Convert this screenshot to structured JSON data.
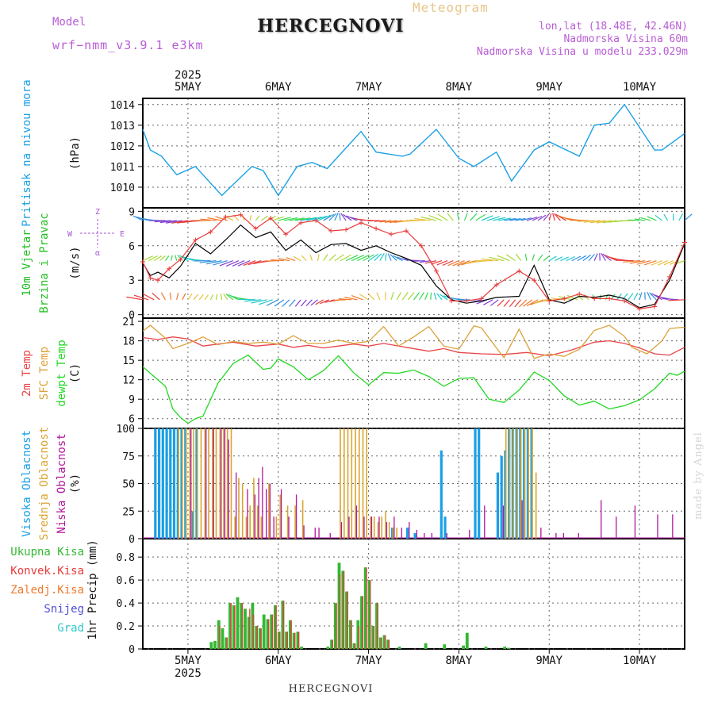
{
  "header": {
    "title": "HERCEGNOVI",
    "meteogram_label": "Meteogram",
    "model_label": "Model",
    "model_value": "wrf−nmm_v3.9.1  e3km",
    "location_coords": "lon,lat (18.48E, 42.46N)",
    "elevation": "Nadmorska Visina 60m",
    "model_elevation": "Nadmorska Visina u modelu 233.029m"
  },
  "footer": {
    "title": "HERCEGNOVI",
    "credit": "made by Angel"
  },
  "colors": {
    "pressure": "#1aa0e6",
    "wind_label": "#22c022",
    "temp2m": "#e8454a",
    "sfc": "#dca13a",
    "dewpt": "#22d822",
    "high_cloud": "#1aa0e6",
    "mid_cloud": "#d9a530",
    "low_cloud": "#b0179c",
    "total_precip": "#32b832",
    "conv_precip": "#e83a3a",
    "grid_precip": "#f07a2a",
    "snow": "#5050d8",
    "hail": "#30c8c8",
    "gust": "#e83a3a",
    "compass": "#a855d8"
  },
  "chart_data": [
    {
      "id": "pressure",
      "type": "line",
      "title_lines": [
        "Pritisak na nivou mora",
        "(hPa)"
      ],
      "x_range": [
        0,
        144
      ],
      "ylim": [
        1009,
        1014.3
      ],
      "yticks": [
        "1010",
        "1011",
        "1012",
        "1013",
        "1014"
      ],
      "x": [
        0,
        2,
        5,
        9,
        14,
        21,
        29,
        32,
        36,
        41,
        45,
        49,
        58,
        62,
        69,
        71,
        78,
        84,
        88,
        94,
        98,
        104,
        108,
        116,
        120,
        124,
        128,
        136,
        138,
        144
      ],
      "y": [
        1012.8,
        1011.8,
        1011.5,
        1010.6,
        1011.0,
        1009.6,
        1011.0,
        1010.8,
        1009.6,
        1011.0,
        1011.2,
        1010.9,
        1012.7,
        1011.7,
        1011.5,
        1011.6,
        1012.8,
        1011.4,
        1011.0,
        1011.7,
        1010.3,
        1011.8,
        1012.2,
        1011.5,
        1013.0,
        1013.1,
        1014.0,
        1011.8,
        1011.8,
        1012.6
      ]
    },
    {
      "id": "wind",
      "type": "line",
      "title_lines": [
        "10m Vjetar",
        "Brzina i Pravac",
        "(m/s)"
      ],
      "compass": {
        "n": "Z",
        "s": "α",
        "w": "W",
        "e": "E"
      },
      "x_range": [
        0,
        144
      ],
      "ylim": [
        -0.3,
        9.3
      ],
      "yticks": [
        "0",
        "3",
        "6",
        "9"
      ],
      "series": [
        {
          "name": "speed",
          "x": [
            0,
            2,
            4,
            7,
            10,
            14,
            18,
            22,
            26,
            30,
            34,
            38,
            42,
            46,
            50,
            54,
            58,
            62,
            66,
            70,
            74,
            78,
            82,
            86,
            90,
            94,
            100,
            104,
            108,
            112,
            116,
            120,
            124,
            128,
            132,
            136,
            140,
            144
          ],
          "values": [
            4.5,
            3.4,
            3.7,
            3.2,
            4.2,
            6.2,
            5.3,
            6.5,
            7.8,
            6.7,
            7.2,
            5.6,
            6.5,
            5.4,
            6.1,
            6.2,
            5.6,
            6.0,
            5.4,
            4.9,
            4.3,
            2.5,
            1.3,
            1.0,
            1.2,
            1.5,
            1.6,
            4.3,
            1.3,
            1.0,
            1.6,
            1.5,
            1.7,
            1.4,
            0.6,
            0.9,
            3.0,
            6.2
          ]
        },
        {
          "name": "gust",
          "x": [
            0,
            2,
            4,
            7,
            10,
            14,
            18,
            22,
            26,
            30,
            34,
            38,
            42,
            46,
            50,
            54,
            58,
            62,
            66,
            70,
            74,
            78,
            82,
            86,
            90,
            94,
            100,
            104,
            108,
            112,
            116,
            120,
            124,
            128,
            132,
            136,
            140,
            144
          ],
          "values": [
            4.6,
            3.2,
            3.0,
            4.0,
            4.8,
            6.5,
            7.2,
            8.5,
            8.7,
            7.5,
            8.4,
            7.0,
            8.0,
            8.2,
            7.3,
            7.4,
            8.0,
            7.5,
            7.0,
            7.3,
            6.0,
            3.8,
            1.2,
            1.2,
            1.4,
            2.6,
            3.8,
            3.0,
            1.2,
            1.4,
            1.8,
            1.4,
            1.4,
            1.2,
            0.5,
            0.7,
            3.3,
            6.3
          ]
        }
      ],
      "barb_rows": [
        1.3,
        4.7,
        8.2
      ]
    },
    {
      "id": "temperature",
      "type": "line",
      "title_lines": [
        "2m Temp",
        "SFC Temp",
        "dewpt Temp",
        "(C)"
      ],
      "x_range": [
        0,
        144
      ],
      "ylim": [
        4.5,
        21.5
      ],
      "yticks": [
        "6",
        "9",
        "12",
        "15",
        "18",
        "21"
      ],
      "series": [
        {
          "name": "2m Temp",
          "x": [
            0,
            4,
            8,
            12,
            16,
            20,
            24,
            30,
            36,
            40,
            44,
            48,
            52,
            56,
            60,
            64,
            70,
            76,
            80,
            84,
            90,
            96,
            102,
            108,
            114,
            120,
            124,
            128,
            132,
            136,
            140,
            144
          ],
          "values": [
            18.5,
            18.2,
            18.6,
            18.3,
            17.2,
            17.5,
            17.8,
            17.2,
            17.5,
            17.0,
            17.3,
            16.9,
            17.2,
            17.5,
            17.2,
            17.6,
            17.0,
            16.4,
            16.8,
            16.2,
            16.0,
            15.9,
            16.2,
            15.7,
            16.6,
            17.8,
            18.0,
            17.6,
            16.9,
            16.0,
            15.8,
            17.0
          ]
        },
        {
          "name": "SFC Temp",
          "x": [
            0,
            2,
            6,
            8,
            12,
            16,
            20,
            24,
            28,
            32,
            36,
            40,
            44,
            48,
            52,
            56,
            60,
            64,
            68,
            72,
            76,
            80,
            84,
            88,
            90,
            94,
            96,
            100,
            104,
            108,
            112,
            116,
            120,
            124,
            128,
            130,
            134,
            138,
            140,
            144
          ],
          "values": [
            19.5,
            20.4,
            18.4,
            16.8,
            17.6,
            18.6,
            17.4,
            17.9,
            17.6,
            17.8,
            17.5,
            18.8,
            17.6,
            17.6,
            18.1,
            17.6,
            17.9,
            20.2,
            17.2,
            18.6,
            20.2,
            17.2,
            16.7,
            20.3,
            20.0,
            16.9,
            15.4,
            19.8,
            15.3,
            16.0,
            15.6,
            16.7,
            19.6,
            20.4,
            18.7,
            17.0,
            16.0,
            18.0,
            19.9,
            20.1
          ]
        },
        {
          "name": "dewpt Temp",
          "x": [
            0,
            4,
            6,
            8,
            10,
            12,
            14,
            16,
            20,
            24,
            28,
            32,
            34,
            36,
            40,
            44,
            48,
            52,
            56,
            60,
            64,
            68,
            72,
            76,
            80,
            84,
            88,
            92,
            96,
            100,
            104,
            108,
            112,
            116,
            120,
            124,
            128,
            132,
            136,
            140,
            142,
            144
          ],
          "values": [
            14.0,
            12.0,
            11.0,
            7.5,
            6.2,
            5.3,
            6.0,
            6.4,
            11.5,
            14.5,
            15.8,
            13.6,
            13.8,
            15.2,
            14.0,
            12.0,
            13.4,
            15.7,
            13.1,
            11.2,
            13.1,
            13.0,
            13.5,
            12.5,
            11.0,
            12.2,
            12.3,
            9.0,
            8.5,
            10.4,
            13.2,
            11.9,
            9.5,
            8.1,
            8.7,
            7.5,
            8.0,
            8.9,
            10.6,
            13.0,
            12.7,
            13.3
          ]
        }
      ]
    },
    {
      "id": "clouds",
      "type": "bar",
      "title_lines": [
        "Visoka Oblacnost",
        "Srednja Oblacnost",
        "Niska Oblacnost",
        "(%)"
      ],
      "x_range": [
        0,
        144
      ],
      "ylim": [
        0,
        100
      ],
      "yticks": [
        "0",
        "25",
        "50",
        "75",
        "100"
      ],
      "series": [
        {
          "name": "Visoka Oblacnost",
          "x": [
            3,
            4,
            5,
            6,
            7,
            8,
            9,
            10,
            11,
            13,
            14,
            25,
            27,
            35,
            41,
            66,
            70,
            72,
            79,
            80,
            88,
            89,
            94,
            95,
            96,
            97,
            98,
            99,
            100,
            101,
            102,
            103
          ],
          "values": [
            100,
            100,
            100,
            100,
            100,
            100,
            100,
            100,
            100,
            25,
            100,
            0,
            0,
            0,
            0,
            10,
            10,
            5,
            80,
            20,
            100,
            100,
            60,
            75,
            80,
            100,
            100,
            100,
            100,
            100,
            100,
            100
          ]
        },
        {
          "name": "Srednja Oblacnost",
          "x": [
            9,
            10,
            11,
            12,
            13,
            14,
            15,
            16,
            17,
            18,
            19,
            20,
            21,
            22,
            23,
            24,
            25,
            26,
            27,
            28,
            29,
            30,
            31,
            33,
            35,
            36,
            38,
            40,
            42,
            52,
            53,
            54,
            55,
            56,
            57,
            58,
            59,
            60,
            61,
            62,
            63,
            64,
            65,
            66,
            67,
            96,
            97,
            98,
            99,
            100,
            101,
            102,
            103,
            104
          ],
          "values": [
            100,
            100,
            100,
            100,
            100,
            100,
            100,
            100,
            100,
            100,
            100,
            100,
            100,
            100,
            100,
            20,
            55,
            50,
            20,
            30,
            55,
            30,
            20,
            50,
            20,
            40,
            30,
            30,
            35,
            100,
            100,
            100,
            100,
            100,
            100,
            100,
            100,
            20,
            20,
            15,
            20,
            25,
            15,
            10,
            10,
            100,
            100,
            100,
            100,
            100,
            100,
            100,
            100,
            60
          ]
        },
        {
          "name": "Niska Oblacnost",
          "x": [
            12,
            16,
            18,
            20,
            21,
            22,
            24,
            27,
            29,
            30,
            31,
            32,
            33,
            34,
            36,
            38,
            40,
            42,
            45,
            46,
            49,
            52,
            54,
            56,
            58,
            60,
            62,
            64,
            66,
            68,
            70,
            72,
            74,
            76,
            80,
            86,
            90,
            95,
            100,
            105,
            109,
            111,
            115,
            121,
            125,
            130,
            136,
            140
          ],
          "values": [
            100,
            100,
            100,
            100,
            100,
            90,
            60,
            45,
            40,
            55,
            65,
            45,
            50,
            20,
            45,
            20,
            40,
            12,
            10,
            10,
            5,
            15,
            20,
            30,
            20,
            20,
            20,
            15,
            20,
            10,
            15,
            8,
            5,
            5,
            5,
            8,
            30,
            30,
            35,
            10,
            5,
            5,
            5,
            35,
            20,
            30,
            22,
            22
          ]
        }
      ]
    },
    {
      "id": "precip",
      "type": "bar",
      "title_lines": [
        "1hr Precip (mm)"
      ],
      "legend": [
        "Ukupna Kisa",
        "Konvek.Kisa",
        "Zaledj.Kisa",
        "Snijeg",
        "Grad"
      ],
      "x_range": [
        0,
        144
      ],
      "ylim": [
        0,
        0.96
      ],
      "yticks": [
        "0",
        "0.2",
        "0.4",
        "0.6",
        "0.8"
      ],
      "series": [
        {
          "name": "Ukupna Kisa",
          "x": [
            18,
            19,
            20,
            21,
            22,
            23,
            24,
            25,
            26,
            27,
            28,
            29,
            30,
            31,
            32,
            33,
            34,
            35,
            36,
            37,
            38,
            39,
            40,
            41,
            42,
            49,
            50,
            51,
            52,
            53,
            54,
            55,
            56,
            57,
            58,
            59,
            60,
            61,
            62,
            63,
            64,
            65,
            68,
            75,
            80,
            85,
            86,
            91,
            96,
            97
          ],
          "values": [
            0.06,
            0.07,
            0.25,
            0.18,
            0.1,
            0.4,
            0.38,
            0.45,
            0.4,
            0.35,
            0.28,
            0.4,
            0.2,
            0.18,
            0.3,
            0.26,
            0.3,
            0.38,
            0.15,
            0.42,
            0.15,
            0.25,
            0.14,
            0.15,
            0.02,
            0.02,
            0.08,
            0.4,
            0.75,
            0.68,
            0.5,
            0.25,
            0.05,
            0.25,
            0.46,
            0.71,
            0.6,
            0.2,
            0.4,
            0.1,
            0.12,
            0.08,
            0.02,
            0.05,
            0.04,
            0.03,
            0.14,
            0.02,
            0.02,
            0.01
          ]
        },
        {
          "name": "Konvek.Kisa",
          "x": [
            20,
            22,
            23,
            24,
            26,
            28,
            29,
            30,
            31,
            33,
            34,
            35,
            36,
            37,
            38,
            39,
            40,
            41,
            50,
            51,
            52,
            53,
            54,
            55,
            56,
            57,
            58,
            59,
            60,
            61,
            62,
            63,
            64,
            65
          ],
          "values": [
            0.2,
            0.1,
            0.4,
            0.38,
            0.4,
            0.35,
            0.3,
            0.2,
            0.18,
            0.26,
            0.3,
            0.38,
            0.15,
            0.42,
            0.15,
            0.25,
            0.14,
            0.15,
            0.08,
            0.4,
            0.65,
            0.68,
            0.5,
            0.25,
            0.05,
            0.2,
            0.46,
            0.71,
            0.6,
            0.2,
            0.4,
            0.1,
            0.12,
            0.08
          ]
        }
      ]
    }
  ],
  "axis_labels": {
    "top_year": "2025",
    "bottom_year": "2025",
    "days": [
      "5MAY",
      "6MAY",
      "7MAY",
      "8MAY",
      "9MAY",
      "10MAY"
    ],
    "day_hours": [
      12,
      36,
      60,
      84,
      108,
      132
    ]
  }
}
